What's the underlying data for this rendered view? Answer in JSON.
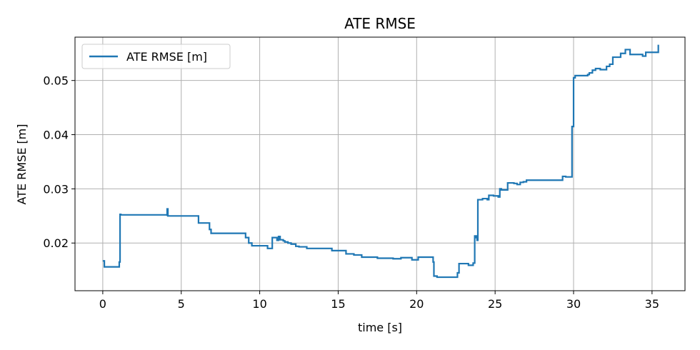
{
  "chart_data": {
    "type": "line",
    "title": "ATE RMSE",
    "xlabel": "time [s]",
    "ylabel": "ATE RMSE [m]",
    "xlim": [
      -1.77,
      37.1
    ],
    "ylim": [
      0.0112,
      0.058
    ],
    "xticks": [
      0,
      5,
      10,
      15,
      20,
      25,
      30,
      35
    ],
    "yticks": [
      0.02,
      0.03,
      0.04,
      0.05
    ],
    "xtick_labels": [
      "0",
      "5",
      "10",
      "15",
      "20",
      "25",
      "30",
      "35"
    ],
    "ytick_labels": [
      "0.02",
      "0.03",
      "0.04",
      "0.05"
    ],
    "grid": true,
    "legend_position": "top-left",
    "series": [
      {
        "name": "ATE RMSE [m]",
        "color": "#1f77b4",
        "x": [
          0.0,
          0.1,
          0.1,
          1.0,
          1.05,
          1.1,
          1.15,
          4.0,
          4.1,
          4.1,
          4.15,
          6.0,
          6.1,
          6.7,
          6.8,
          6.9,
          9.0,
          9.1,
          9.3,
          9.5,
          10.4,
          10.5,
          10.7,
          10.8,
          10.9,
          11.1,
          11.2,
          11.3,
          11.5,
          11.6,
          11.8,
          12.0,
          12.3,
          12.5,
          12.6,
          13.0,
          13.5,
          14.5,
          14.6,
          15.3,
          15.5,
          16.0,
          16.5,
          17.5,
          18.5,
          18.9,
          19.0,
          19.6,
          19.7,
          20.0,
          20.1,
          21.0,
          21.05,
          21.1,
          21.3,
          22.5,
          22.6,
          22.7,
          23.2,
          23.3,
          23.5,
          23.6,
          23.7,
          23.8,
          23.85,
          23.9,
          24.2,
          24.5,
          24.6,
          24.9,
          25.2,
          25.3,
          25.4,
          25.6,
          25.8,
          26.2,
          26.4,
          26.6,
          26.8,
          27.0,
          27.2,
          29.0,
          29.3,
          29.5,
          29.8,
          29.9,
          30.0,
          30.1,
          30.3,
          30.9,
          31.0,
          31.2,
          31.4,
          31.7,
          32.1,
          32.3,
          32.5,
          33.0,
          33.1,
          33.3,
          33.6,
          34.4,
          34.6,
          35.2,
          35.4
        ],
        "y": [
          0.0167,
          0.0165,
          0.0156,
          0.0156,
          0.0165,
          0.0253,
          0.0252,
          0.0252,
          0.025,
          0.0263,
          0.025,
          0.025,
          0.0237,
          0.0237,
          0.0225,
          0.0218,
          0.0218,
          0.021,
          0.02,
          0.0195,
          0.0195,
          0.019,
          0.019,
          0.021,
          0.021,
          0.0205,
          0.0212,
          0.0206,
          0.0204,
          0.0202,
          0.02,
          0.0198,
          0.0194,
          0.0193,
          0.0193,
          0.019,
          0.019,
          0.019,
          0.0186,
          0.0186,
          0.018,
          0.0178,
          0.0174,
          0.0172,
          0.0171,
          0.0171,
          0.0173,
          0.0173,
          0.0169,
          0.0169,
          0.0174,
          0.0174,
          0.0165,
          0.0139,
          0.0137,
          0.0137,
          0.0145,
          0.0162,
          0.0162,
          0.0159,
          0.0159,
          0.0163,
          0.0213,
          0.021,
          0.0205,
          0.028,
          0.0282,
          0.028,
          0.0288,
          0.0287,
          0.0285,
          0.03,
          0.0298,
          0.0298,
          0.0311,
          0.031,
          0.0308,
          0.0312,
          0.0313,
          0.0316,
          0.0316,
          0.0316,
          0.0323,
          0.0322,
          0.0322,
          0.0415,
          0.0505,
          0.0509,
          0.0509,
          0.0511,
          0.0514,
          0.0519,
          0.0522,
          0.052,
          0.0526,
          0.053,
          0.0543,
          0.055,
          0.055,
          0.0557,
          0.0548,
          0.0545,
          0.0552,
          0.0552,
          0.0566
        ]
      }
    ]
  }
}
